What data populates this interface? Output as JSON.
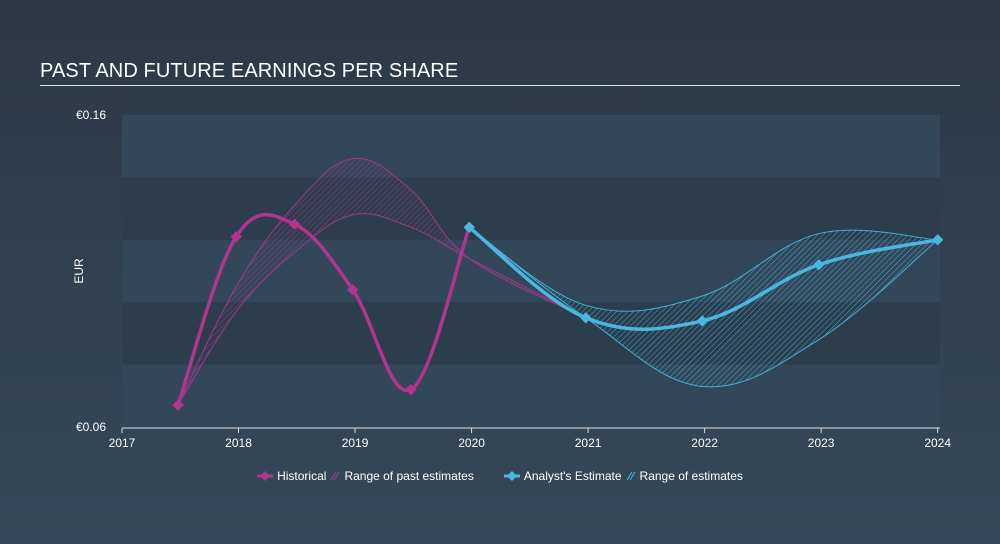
{
  "chart_data": {
    "type": "line",
    "title": "PAST AND FUTURE EARNINGS PER SHARE",
    "ylabel": "EUR",
    "xlabel": "",
    "ylim": [
      0.06,
      0.16
    ],
    "xlim": [
      2017,
      2024.02
    ],
    "y_tick_labels": [
      "€0.16",
      "€0.06"
    ],
    "x_ticks": [
      2017,
      2018,
      2019,
      2020,
      2021,
      2022,
      2023,
      2024
    ],
    "x_tick_labels": [
      "2017",
      "2018",
      "2019",
      "2020",
      "2021",
      "2022",
      "2023",
      "2024"
    ],
    "series": [
      {
        "name": "Historical",
        "color": "#b3348f",
        "x": [
          2017.48,
          2017.98,
          2018.48,
          2018.98,
          2019.48,
          2019.98
        ],
        "values": [
          0.067,
          0.121,
          0.125,
          0.104,
          0.072,
          0.124
        ]
      },
      {
        "name": "Analyst's Estimate",
        "color": "#48b8e0",
        "x": [
          2019.98,
          2020.98,
          2021.98,
          2022.98,
          2024.0
        ],
        "values": [
          0.124,
          0.095,
          0.094,
          0.112,
          0.12
        ]
      }
    ],
    "ranges": [
      {
        "name": "Range of past estimates",
        "color": "#b3348f",
        "x": [
          2017.48,
          2017.98,
          2018.48,
          2018.98,
          2019.48,
          2019.98,
          2020.98
        ],
        "high": [
          0.067,
          0.105,
          0.131,
          0.146,
          0.136,
          0.114,
          0.095
        ],
        "low": [
          0.067,
          0.097,
          0.116,
          0.128,
          0.124,
          0.114,
          0.095
        ]
      },
      {
        "name": "Range of estimates",
        "color": "#48b8e0",
        "x": [
          2019.98,
          2020.98,
          2021.98,
          2022.98,
          2024.0
        ],
        "high": [
          0.124,
          0.099,
          0.102,
          0.122,
          0.12
        ],
        "low": [
          0.124,
          0.095,
          0.073,
          0.088,
          0.12
        ]
      }
    ]
  },
  "legend": {
    "historical": "Historical",
    "past_range": "Range of past estimates",
    "estimate": "Analyst's Estimate",
    "estimate_range": "Range of estimates"
  }
}
